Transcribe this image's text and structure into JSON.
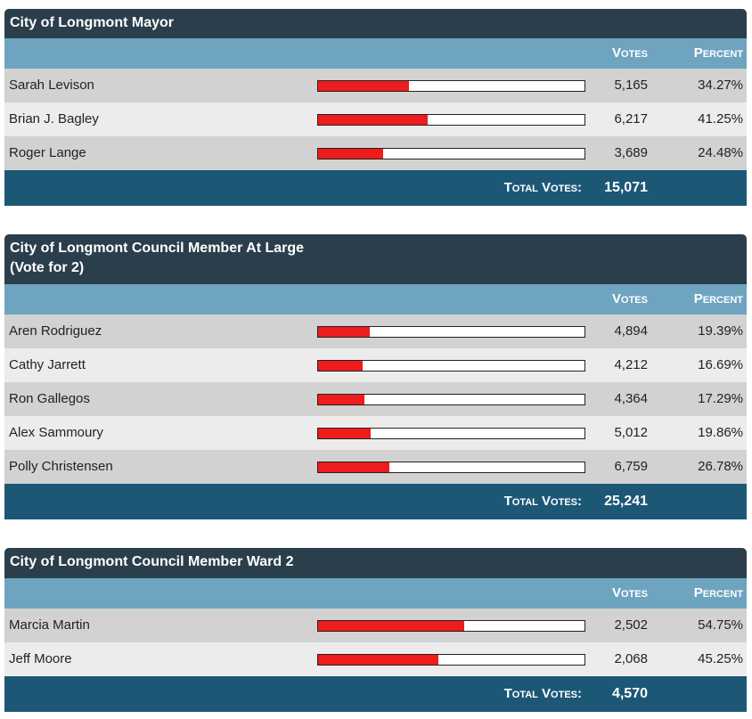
{
  "labels": {
    "votes": "Votes",
    "percent": "Percent",
    "total_votes": "Total Votes:"
  },
  "colors": {
    "title_bg": "#2b3e4c",
    "header_bg": "#6ea4c0",
    "total_bg": "#1c5876",
    "bar_fill": "#ee1c1c"
  },
  "races": [
    {
      "title": "City of Longmont Mayor",
      "total": "15,071",
      "candidates": [
        {
          "name": "Sarah Levison",
          "votes": "5,165",
          "percent": "34.27%",
          "share": 0.3427
        },
        {
          "name": "Brian J. Bagley",
          "votes": "6,217",
          "percent": "41.25%",
          "share": 0.4125
        },
        {
          "name": "Roger Lange",
          "votes": "3,689",
          "percent": "24.48%",
          "share": 0.2448
        }
      ]
    },
    {
      "title": "City of Longmont Council Member At Large\n(Vote for 2)",
      "total": "25,241",
      "candidates": [
        {
          "name": "Aren Rodriguez",
          "votes": "4,894",
          "percent": "19.39%",
          "share": 0.1939
        },
        {
          "name": "Cathy Jarrett",
          "votes": "4,212",
          "percent": "16.69%",
          "share": 0.1669
        },
        {
          "name": "Ron Gallegos",
          "votes": "4,364",
          "percent": "17.29%",
          "share": 0.1729
        },
        {
          "name": "Alex Sammoury",
          "votes": "5,012",
          "percent": "19.86%",
          "share": 0.1986
        },
        {
          "name": "Polly Christensen",
          "votes": "6,759",
          "percent": "26.78%",
          "share": 0.2678
        }
      ]
    },
    {
      "title": "City of Longmont Council Member Ward 2",
      "total": "4,570",
      "candidates": [
        {
          "name": "Marcia Martin",
          "votes": "2,502",
          "percent": "54.75%",
          "share": 0.5475
        },
        {
          "name": "Jeff Moore",
          "votes": "2,068",
          "percent": "45.25%",
          "share": 0.4525
        }
      ]
    }
  ]
}
